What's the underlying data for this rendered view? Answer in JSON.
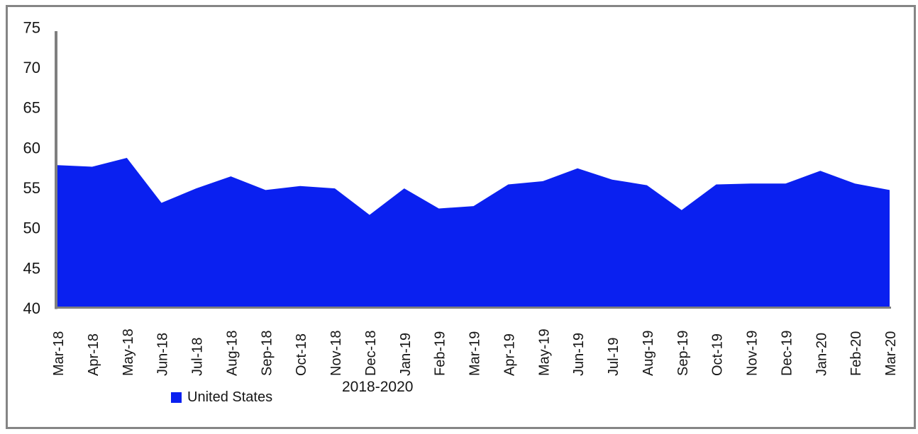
{
  "frame": {
    "border_color": "#858585",
    "background": "#ffffff"
  },
  "legend": {
    "label": "United States",
    "swatch_color": "#0a20f0"
  },
  "caption": "2018-2020",
  "chart_data": {
    "type": "area",
    "title": "",
    "xlabel": "",
    "ylabel": "",
    "categories": [
      "Mar-18",
      "Apr-18",
      "May-18",
      "Jun-18",
      "Jul-18",
      "Aug-18",
      "Sep-18",
      "Oct-18",
      "Nov-18",
      "Dec-18",
      "Jan-19",
      "Feb-19",
      "Mar-19",
      "Apr-19",
      "May-19",
      "Jun-19",
      "Jul-19",
      "Aug-19",
      "Sep-19",
      "Oct-19",
      "Nov-19",
      "Dec-19",
      "Jan-20",
      "Feb-20",
      "Mar-20"
    ],
    "series": [
      {
        "name": "United States",
        "color": "#0a20f0",
        "values": [
          57.8,
          57.6,
          58.7,
          53.1,
          54.9,
          56.4,
          54.7,
          55.2,
          54.9,
          51.6,
          54.9,
          52.4,
          52.7,
          55.4,
          55.8,
          57.4,
          56.0,
          55.3,
          52.2,
          55.4,
          55.5,
          55.5,
          57.1,
          55.5,
          54.7
        ]
      }
    ],
    "ylim": [
      40,
      75
    ],
    "yticks": [
      40,
      45,
      50,
      55,
      60,
      65,
      70,
      75
    ],
    "grid": "off",
    "legend_position": "bottom",
    "axis_color": "#7f7f7f",
    "text_color": "#151515",
    "xtick_rotation_deg": -90
  }
}
